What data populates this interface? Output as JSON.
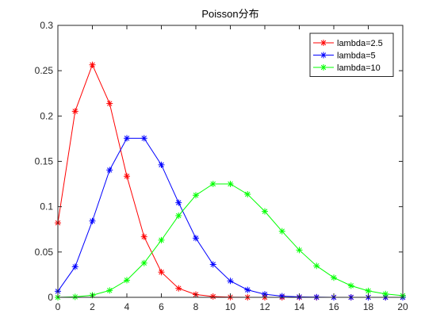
{
  "chart_data": {
    "type": "line",
    "title": "Poisson分布",
    "xlabel": "",
    "ylabel": "",
    "xlim": [
      0,
      20
    ],
    "ylim": [
      0,
      0.3
    ],
    "xticks": [
      0,
      2,
      4,
      6,
      8,
      10,
      12,
      14,
      16,
      18,
      20
    ],
    "xtick_labels": [
      "0",
      "2",
      "4",
      "6",
      "8",
      "10",
      "12",
      "14",
      "16",
      "18",
      "20"
    ],
    "yticks": [
      0,
      0.05,
      0.1,
      0.15,
      0.2,
      0.25,
      0.3
    ],
    "ytick_labels": [
      "0",
      "0.05",
      "0.1",
      "0.15",
      "0.2",
      "0.25",
      "0.3"
    ],
    "grid": false,
    "legend_position": "top-right",
    "marker": "asterisk",
    "x": [
      0,
      1,
      2,
      3,
      4,
      5,
      6,
      7,
      8,
      9,
      10,
      11,
      12,
      13,
      14,
      15,
      16,
      17,
      18,
      19,
      20
    ],
    "series": [
      {
        "name": "lambda=2.5",
        "color": "#ff0000",
        "values": [
          0.0821,
          0.2052,
          0.2565,
          0.2138,
          0.1336,
          0.0668,
          0.0278,
          0.0099,
          0.0031,
          0.0009,
          0.0002,
          0.0,
          0.0,
          0.0,
          0.0,
          0.0,
          0.0,
          0.0,
          0.0,
          0.0,
          0.0
        ]
      },
      {
        "name": "lambda=5",
        "color": "#0000ff",
        "values": [
          0.0067,
          0.0337,
          0.0842,
          0.1404,
          0.1755,
          0.1755,
          0.1462,
          0.1044,
          0.0653,
          0.0363,
          0.0181,
          0.0082,
          0.0034,
          0.0013,
          0.0005,
          0.0002,
          0.0,
          0.0,
          0.0,
          0.0,
          0.0
        ]
      },
      {
        "name": "lambda=10",
        "color": "#00ff00",
        "values": [
          0.0,
          0.0005,
          0.0023,
          0.0076,
          0.0189,
          0.0378,
          0.0631,
          0.0901,
          0.1126,
          0.1251,
          0.1251,
          0.1137,
          0.0948,
          0.0729,
          0.0521,
          0.0347,
          0.0217,
          0.0128,
          0.0071,
          0.0037,
          0.0019
        ]
      }
    ]
  }
}
